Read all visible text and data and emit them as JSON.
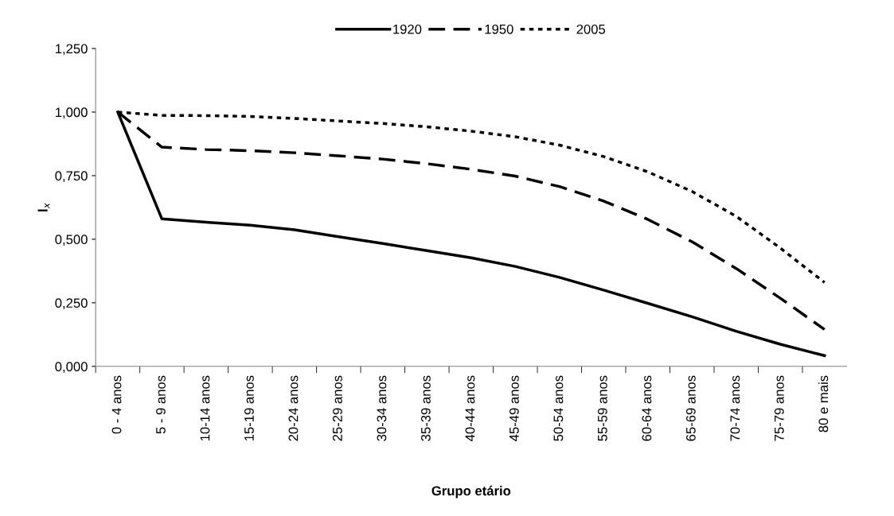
{
  "chart_data": {
    "type": "line",
    "xlabel": "Grupo etário",
    "ylabel": "l$_{x}$",
    "categories": [
      "0 - 4 anos",
      "5 - 9 anos",
      "10-14 anos",
      "15-19 anos",
      "20-24 anos",
      "25-29 anos",
      "30-34 anos",
      "35-39 anos",
      "40-44 anos",
      "45-49 anos",
      "50-54 anos",
      "55-59 anos",
      "60-64 anos",
      "65-69 anos",
      "70-74 anos",
      "75-79 anos",
      "80 e mais"
    ],
    "series": [
      {
        "name": "1920",
        "color": "#000000",
        "line_style": "solid",
        "values": [
          1.0,
          0.58,
          0.567,
          0.555,
          0.537,
          0.51,
          0.483,
          0.455,
          0.427,
          0.393,
          0.35,
          0.3,
          0.248,
          0.195,
          0.138,
          0.087,
          0.042
        ]
      },
      {
        "name": "1950",
        "color": "#000000",
        "line_style": "dashed",
        "values": [
          1.0,
          0.862,
          0.853,
          0.848,
          0.84,
          0.828,
          0.815,
          0.797,
          0.775,
          0.748,
          0.707,
          0.65,
          0.578,
          0.49,
          0.385,
          0.268,
          0.145
        ]
      },
      {
        "name": "2005",
        "color": "#000000",
        "line_style": "dotted",
        "values": [
          1.0,
          0.987,
          0.986,
          0.983,
          0.975,
          0.965,
          0.955,
          0.942,
          0.925,
          0.903,
          0.87,
          0.825,
          0.765,
          0.688,
          0.59,
          0.465,
          0.33
        ]
      }
    ],
    "ylim": [
      0,
      1.25
    ],
    "yticks": [
      {
        "value": 0,
        "label": "0,000"
      },
      {
        "value": 0.25,
        "label": "0,250"
      },
      {
        "value": 0.5,
        "label": "0,500"
      },
      {
        "value": 0.75,
        "label": "0,750"
      },
      {
        "value": 1.0,
        "label": "1,000"
      },
      {
        "value": 1.25,
        "label": "1,250"
      }
    ],
    "grid": false,
    "legend": "top",
    "marker": "none"
  }
}
